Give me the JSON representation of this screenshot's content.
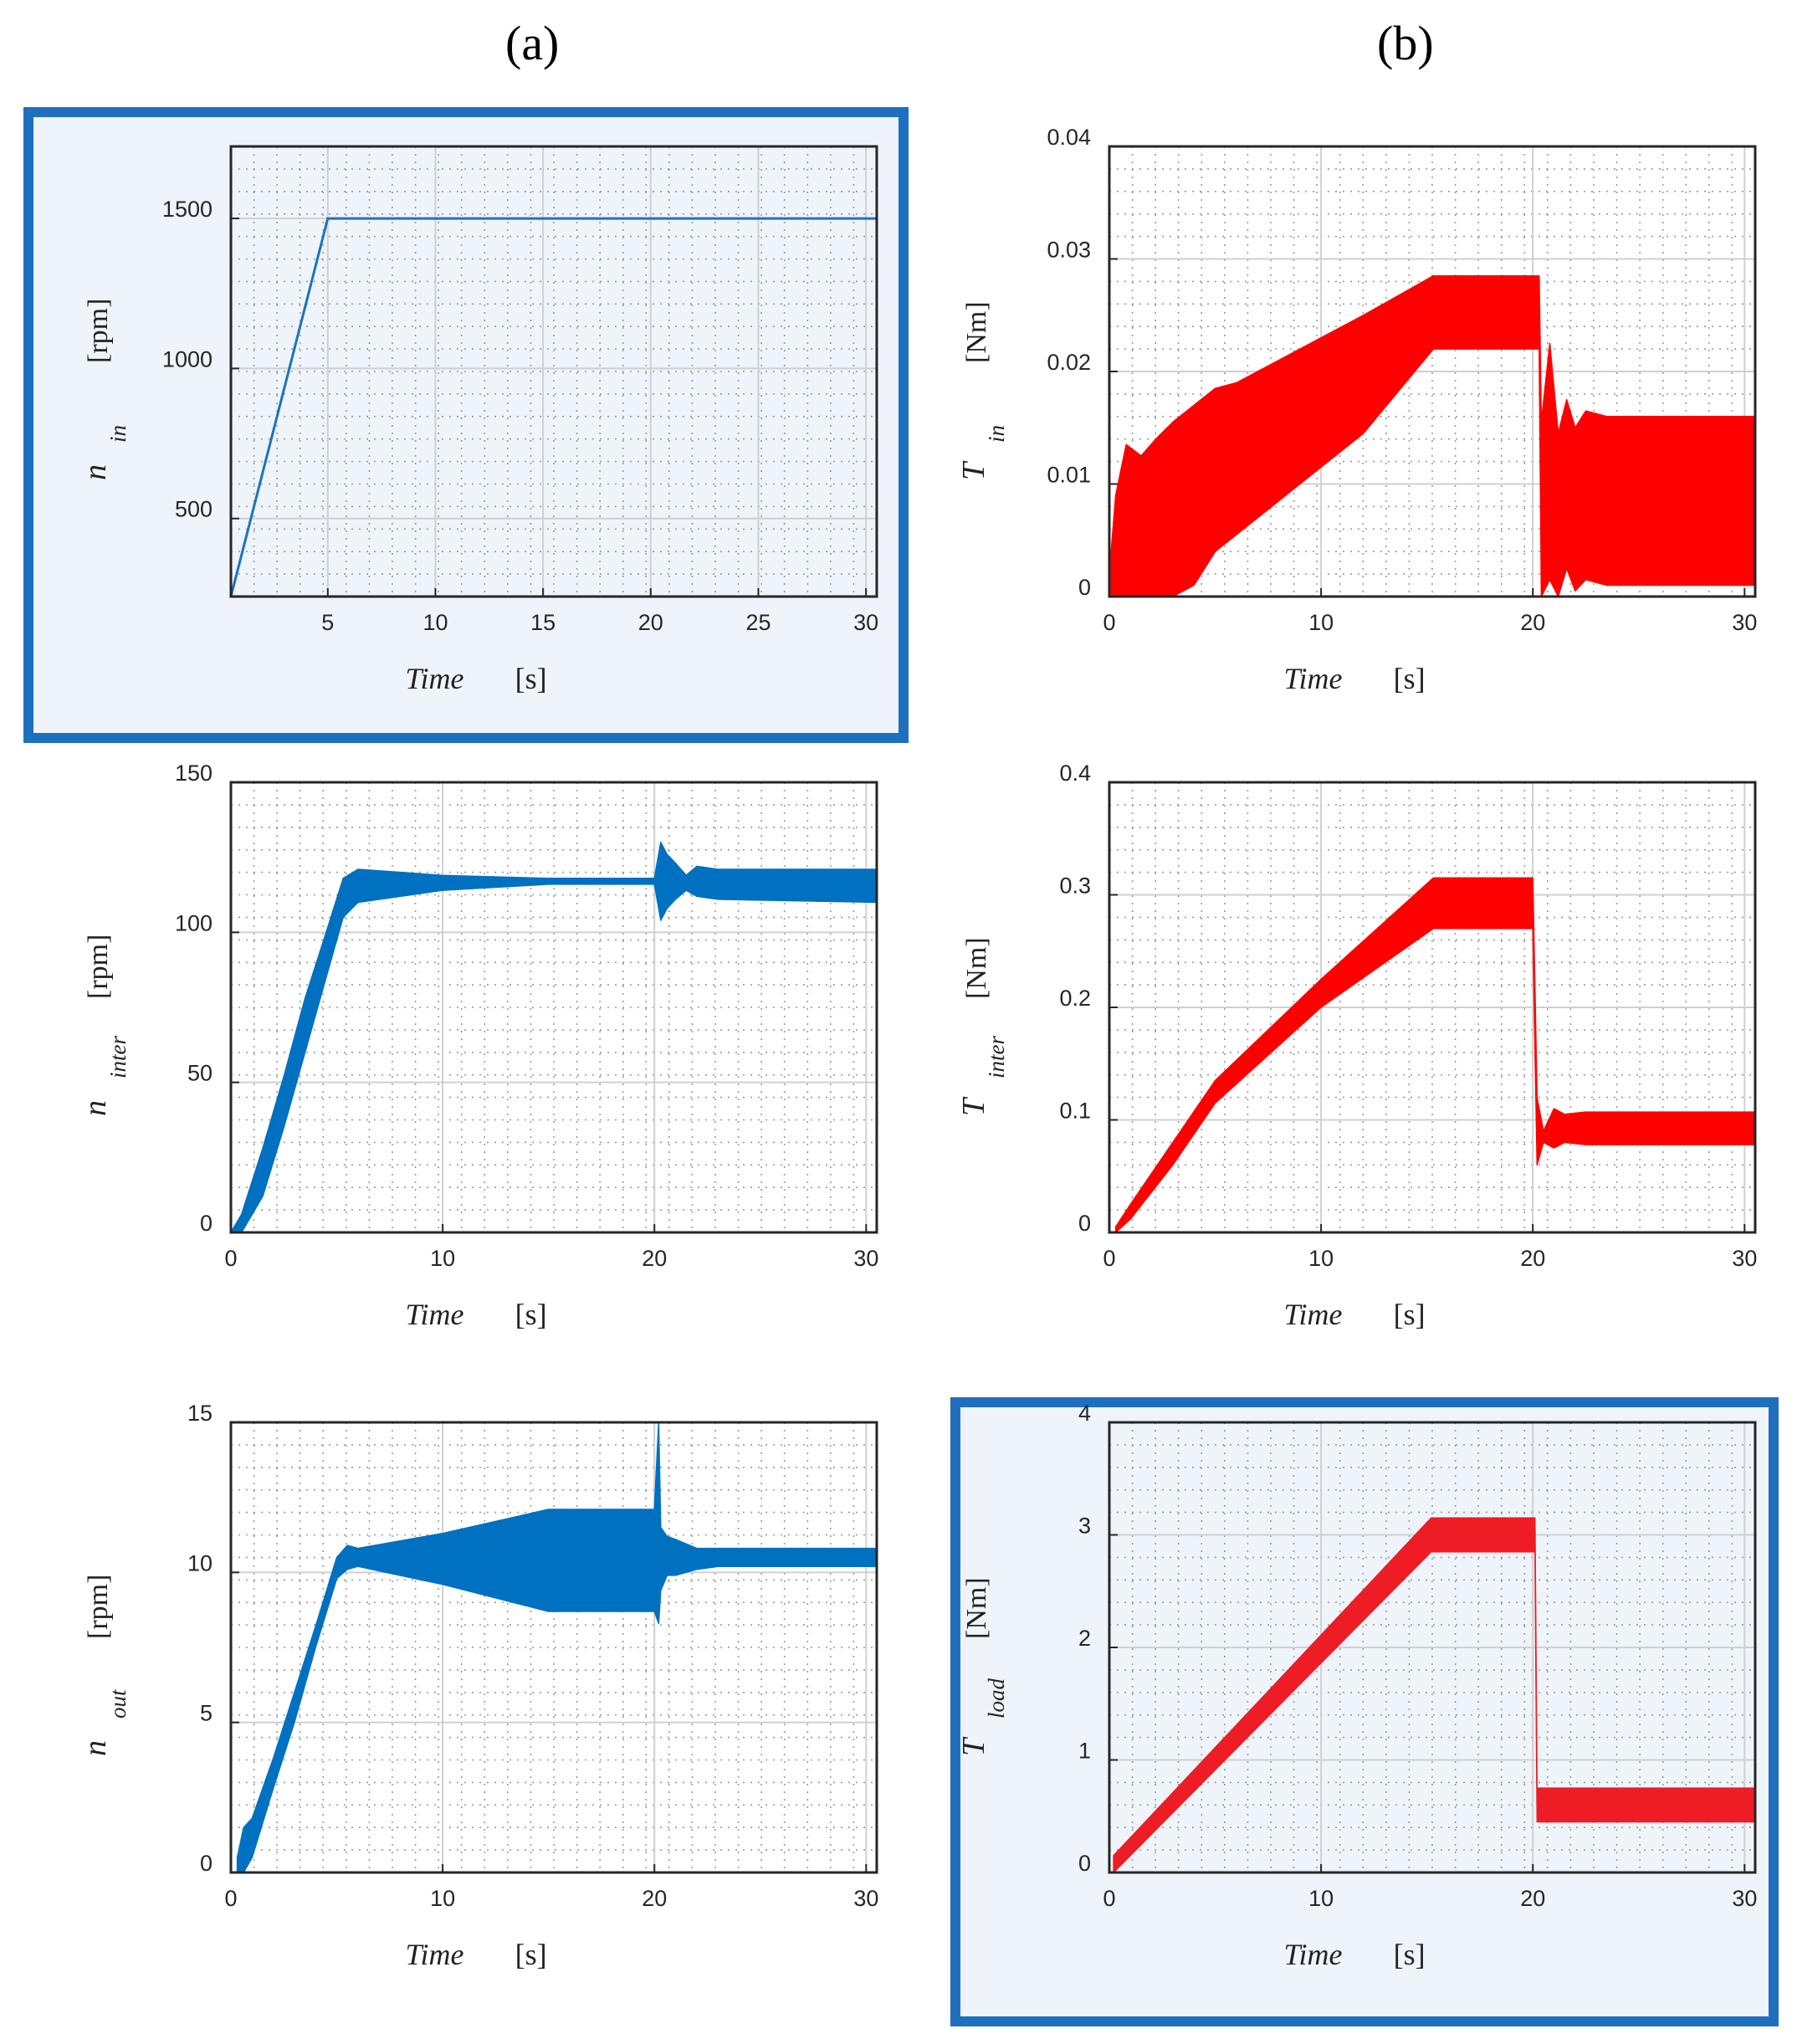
{
  "column_labels": [
    "(a)",
    "(b)"
  ],
  "chart_data": [
    {
      "id": "n_in",
      "type": "line",
      "color": "#1f73b8",
      "highlight": true,
      "ylabel_main": "n",
      "ylabel_sub": "in",
      "ylabel_unit": "[rpm]",
      "xlabel_main": "Time",
      "xlabel_unit": "[s]",
      "xlim": [
        0.5,
        30.5
      ],
      "ylim": [
        240,
        1740
      ],
      "xticks": [
        5,
        10,
        15,
        20,
        25,
        30
      ],
      "yticks": [
        500,
        1000,
        1500
      ],
      "series": [
        {
          "x": [
            0.5,
            5,
            30.5
          ],
          "y": [
            240,
            1500,
            1500
          ]
        }
      ]
    },
    {
      "id": "T_in",
      "type": "area",
      "color": "#ff0000",
      "highlight": false,
      "ylabel_main": "T",
      "ylabel_sub": "in",
      "ylabel_unit": "[Nm]",
      "xlabel_main": "Time",
      "xlabel_unit": "[s]",
      "xlim": [
        0,
        30.5
      ],
      "ylim": [
        0,
        0.04
      ],
      "xticks": [
        0,
        10,
        20,
        30
      ],
      "yticks": [
        0,
        0.01,
        0.02,
        0.03,
        0.04
      ],
      "band": {
        "x": [
          0,
          0.3,
          0.8,
          1.5,
          2.2,
          3.0,
          4.0,
          5.0,
          6.0,
          8.0,
          10.0,
          12.0,
          15.3,
          20.3,
          20.4,
          20.8,
          21.2,
          21.6,
          22.0,
          22.5,
          23.5,
          30.5
        ],
        "upper": [
          0.002,
          0.009,
          0.0135,
          0.0125,
          0.014,
          0.0155,
          0.017,
          0.0185,
          0.019,
          0.021,
          0.023,
          0.025,
          0.0285,
          0.0285,
          0.0155,
          0.0225,
          0.0145,
          0.0175,
          0.015,
          0.0165,
          0.016,
          0.016
        ],
        "lower": [
          0,
          0,
          0,
          0,
          0,
          0,
          0.001,
          0.004,
          0.0055,
          0.0085,
          0.0115,
          0.0145,
          0.022,
          0.022,
          0,
          0.0015,
          0,
          0.0025,
          0.0005,
          0.0015,
          0.001,
          0.001
        ]
      }
    },
    {
      "id": "n_inter",
      "type": "area",
      "color": "#0070c0",
      "highlight": false,
      "ylabel_main": "n",
      "ylabel_sub": "inter",
      "ylabel_unit": "[rpm]",
      "xlabel_main": "Time",
      "xlabel_unit": "[s]",
      "xlim": [
        0,
        30.5
      ],
      "ylim": [
        0,
        150
      ],
      "xticks": [
        0,
        10,
        20,
        30
      ],
      "yticks": [
        0,
        50,
        100,
        150
      ],
      "band": {
        "x": [
          0,
          0.5,
          1.5,
          2.5,
          3.5,
          4.5,
          5.3,
          6.0,
          10.0,
          15.0,
          20.0,
          20.3,
          20.6,
          21.0,
          21.5,
          22.0,
          23.0,
          30.5
        ],
        "upper": [
          0,
          6,
          28,
          52,
          78,
          100,
          118,
          121,
          119,
          118,
          118,
          130,
          126,
          123,
          119,
          122,
          121,
          121
        ],
        "lower": [
          0,
          0,
          12,
          35,
          60,
          85,
          105,
          110,
          114,
          116,
          116,
          104,
          108,
          111,
          114,
          112,
          111,
          110
        ]
      }
    },
    {
      "id": "T_inter",
      "type": "area",
      "color": "#ff0000",
      "highlight": false,
      "ylabel_main": "T",
      "ylabel_sub": "inter",
      "ylabel_unit": "[Nm]",
      "xlabel_main": "Time",
      "xlabel_unit": "[s]",
      "xlim": [
        0,
        30.5
      ],
      "ylim": [
        0,
        0.4
      ],
      "xticks": [
        0,
        10,
        20,
        30
      ],
      "yticks": [
        0,
        0.1,
        0.2,
        0.3,
        0.4
      ],
      "band": {
        "x": [
          0.3,
          1.0,
          3.0,
          5.0,
          10.0,
          15.3,
          20.0,
          20.2,
          20.5,
          21.0,
          21.5,
          22.5,
          30.5
        ],
        "upper": [
          0.005,
          0.025,
          0.08,
          0.135,
          0.225,
          0.315,
          0.315,
          0.12,
          0.09,
          0.11,
          0.105,
          0.107,
          0.107
        ],
        "lower": [
          0,
          0.012,
          0.06,
          0.115,
          0.2,
          0.27,
          0.27,
          0.06,
          0.08,
          0.075,
          0.08,
          0.078,
          0.078
        ]
      }
    },
    {
      "id": "n_out",
      "type": "area",
      "color": "#0070c0",
      "highlight": false,
      "ylabel_main": "n",
      "ylabel_sub": "out",
      "ylabel_unit": "[rpm]",
      "xlabel_main": "Time",
      "xlabel_unit": "[s]",
      "xlim": [
        0,
        30.5
      ],
      "ylim": [
        0,
        15
      ],
      "xticks": [
        0,
        10,
        20,
        30
      ],
      "yticks": [
        0,
        5,
        10,
        15
      ],
      "band": {
        "x": [
          0.3,
          0.6,
          1.0,
          2.0,
          3.0,
          4.0,
          5.0,
          5.5,
          6.0,
          10.0,
          15.0,
          20.0,
          20.2,
          20.3,
          20.6,
          21.0,
          22.0,
          23.0,
          30.5
        ],
        "upper": [
          0.5,
          1.5,
          1.8,
          3.8,
          6.0,
          8.2,
          10.5,
          10.9,
          10.8,
          11.3,
          12.1,
          12.1,
          15.0,
          11.5,
          11.2,
          11.1,
          10.8,
          10.8,
          10.8
        ],
        "lower": [
          0,
          0,
          0.5,
          2.8,
          5.0,
          7.5,
          9.8,
          10.1,
          10.2,
          9.6,
          8.7,
          8.7,
          8.3,
          9.4,
          9.9,
          9.9,
          10.1,
          10.2,
          10.2
        ]
      }
    },
    {
      "id": "T_load",
      "type": "area",
      "color": "#ee1c24",
      "highlight": true,
      "ylabel_main": "T",
      "ylabel_sub": "load",
      "ylabel_unit": "[Nm]",
      "xlabel_main": "Time",
      "xlabel_unit": "[s]",
      "xlim": [
        0,
        30.5
      ],
      "ylim": [
        0,
        4
      ],
      "xticks": [
        0,
        10,
        20,
        30
      ],
      "yticks": [
        0,
        1,
        2,
        3,
        4
      ],
      "band": {
        "x": [
          0.2,
          15.2,
          20.1,
          20.2,
          30.5
        ],
        "upper": [
          0.15,
          3.15,
          3.15,
          0.75,
          0.75
        ],
        "lower": [
          0,
          2.85,
          2.85,
          0.45,
          0.45
        ]
      }
    }
  ]
}
